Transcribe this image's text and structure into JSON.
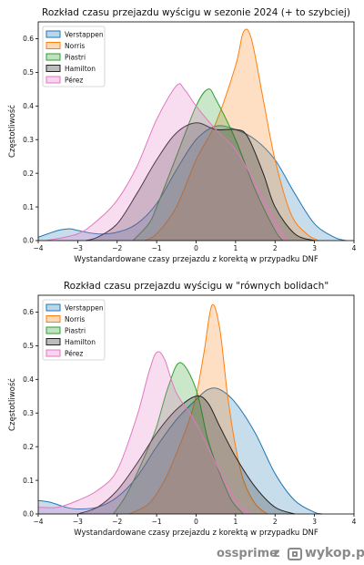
{
  "chart_data": [
    {
      "type": "area",
      "title": "Rozkład czasu przejazdu wyścigu w sezonie 2024 (+ to szybciej)",
      "xlabel": "Wystandardowane czasy przejazdu z korektą w przypadku DNF",
      "ylabel": "Częstotliwość",
      "xlim": [
        -4,
        4
      ],
      "ylim": [
        0,
        0.65
      ],
      "xticks": [
        "−4",
        "−3",
        "−2",
        "−1",
        "0",
        "1",
        "2",
        "3",
        "4"
      ],
      "yticks": [
        "0.0",
        "0.1",
        "0.2",
        "0.3",
        "0.4",
        "0.5",
        "0.6"
      ],
      "legend_position": "top-left",
      "series": [
        {
          "name": "Verstappen",
          "color": "#1f77b4",
          "x": [
            -4.0,
            -3.5,
            -3.2,
            -3.0,
            -2.5,
            -2.0,
            -1.5,
            -1.0,
            -0.5,
            0.0,
            0.5,
            1.0,
            1.5,
            2.0,
            2.5,
            3.0,
            3.5,
            3.8
          ],
          "y": [
            0.01,
            0.03,
            0.035,
            0.03,
            0.02,
            0.025,
            0.05,
            0.11,
            0.21,
            0.3,
            0.34,
            0.33,
            0.3,
            0.24,
            0.14,
            0.05,
            0.01,
            0.0
          ]
        },
        {
          "name": "Norris",
          "color": "#ff7f0e",
          "x": [
            -1.3,
            -1.0,
            -0.5,
            0.0,
            0.5,
            1.0,
            1.2,
            1.4,
            1.7,
            2.0,
            2.4,
            2.8,
            3.1
          ],
          "y": [
            0.0,
            0.02,
            0.1,
            0.24,
            0.35,
            0.52,
            0.62,
            0.6,
            0.42,
            0.24,
            0.08,
            0.02,
            0.0
          ]
        },
        {
          "name": "Piastri",
          "color": "#2ca02c",
          "x": [
            -1.6,
            -1.2,
            -1.0,
            -0.5,
            0.0,
            0.3,
            0.5,
            1.0,
            1.5,
            2.0,
            2.2
          ],
          "y": [
            0.0,
            0.05,
            0.1,
            0.25,
            0.4,
            0.45,
            0.42,
            0.3,
            0.15,
            0.03,
            0.0
          ]
        },
        {
          "name": "Hamilton",
          "color": "#222222",
          "x": [
            -2.8,
            -2.5,
            -2.0,
            -1.5,
            -1.0,
            -0.5,
            0.0,
            0.5,
            1.0,
            1.3,
            1.7,
            2.0,
            2.5,
            3.0
          ],
          "y": [
            0.0,
            0.01,
            0.05,
            0.14,
            0.24,
            0.32,
            0.35,
            0.33,
            0.33,
            0.31,
            0.2,
            0.1,
            0.02,
            0.0
          ]
        },
        {
          "name": "Pérez",
          "color": "#e377c2",
          "x": [
            -3.8,
            -3.0,
            -2.5,
            -2.0,
            -1.5,
            -1.0,
            -0.5,
            -0.3,
            0.0,
            0.5,
            1.0,
            1.5,
            2.0,
            2.3
          ],
          "y": [
            0.0,
            0.02,
            0.06,
            0.12,
            0.22,
            0.36,
            0.46,
            0.45,
            0.4,
            0.33,
            0.27,
            0.17,
            0.06,
            0.0
          ]
        }
      ]
    },
    {
      "type": "area",
      "title": "Rozkład czasu przejazdu wyścigu w \"równych bolidach\"",
      "xlabel": "Wystandardowane czasy przejazdu z korektą w przypadku DNF",
      "ylabel": "Częstotliwość",
      "xlim": [
        -4,
        4
      ],
      "ylim": [
        0,
        0.65
      ],
      "xticks": [
        "−4",
        "−3",
        "−2",
        "−1",
        "0",
        "1",
        "2",
        "3",
        "4"
      ],
      "yticks": [
        "0.0",
        "0.1",
        "0.2",
        "0.3",
        "0.4",
        "0.5",
        "0.6"
      ],
      "legend_position": "top-left",
      "series": [
        {
          "name": "Verstappen",
          "color": "#1f77b4",
          "x": [
            -4.0,
            -3.7,
            -3.3,
            -3.0,
            -2.5,
            -2.0,
            -1.5,
            -1.0,
            -0.5,
            0.0,
            0.3,
            0.6,
            1.0,
            1.5,
            2.0,
            2.5,
            3.0,
            3.2
          ],
          "y": [
            0.04,
            0.035,
            0.02,
            0.015,
            0.02,
            0.05,
            0.11,
            0.2,
            0.28,
            0.34,
            0.37,
            0.37,
            0.33,
            0.24,
            0.12,
            0.04,
            0.005,
            0.0
          ]
        },
        {
          "name": "Norris",
          "color": "#ff7f0e",
          "x": [
            -1.7,
            -1.2,
            -0.8,
            -0.5,
            -0.2,
            0.0,
            0.2,
            0.4,
            0.6,
            0.8,
            1.0,
            1.2,
            1.5,
            1.8
          ],
          "y": [
            0.0,
            0.03,
            0.1,
            0.18,
            0.27,
            0.35,
            0.48,
            0.62,
            0.55,
            0.35,
            0.2,
            0.1,
            0.03,
            0.0
          ]
        },
        {
          "name": "Piastri",
          "color": "#2ca02c",
          "x": [
            -2.1,
            -1.8,
            -1.5,
            -1.2,
            -1.0,
            -0.7,
            -0.4,
            0.0,
            0.3,
            0.6,
            0.9,
            1.2
          ],
          "y": [
            0.0,
            0.05,
            0.12,
            0.2,
            0.26,
            0.38,
            0.45,
            0.37,
            0.22,
            0.12,
            0.04,
            0.0
          ]
        },
        {
          "name": "Hamilton",
          "color": "#222222",
          "x": [
            -3.0,
            -2.5,
            -2.0,
            -1.5,
            -1.0,
            -0.5,
            0.0,
            0.3,
            0.6,
            1.0,
            1.5,
            2.0,
            2.5
          ],
          "y": [
            0.0,
            0.02,
            0.07,
            0.15,
            0.24,
            0.31,
            0.35,
            0.33,
            0.26,
            0.17,
            0.08,
            0.02,
            0.0
          ]
        },
        {
          "name": "Pérez",
          "color": "#e377c2",
          "x": [
            -4.0,
            -3.5,
            -3.0,
            -2.5,
            -2.0,
            -1.5,
            -1.2,
            -1.0,
            -0.8,
            -0.5,
            0.0,
            0.5,
            1.0,
            1.4
          ],
          "y": [
            0.02,
            0.02,
            0.04,
            0.07,
            0.13,
            0.29,
            0.42,
            0.48,
            0.46,
            0.36,
            0.27,
            0.15,
            0.04,
            0.0
          ]
        }
      ]
    }
  ],
  "watermark": {
    "username": "ossprime",
    "separator": "z",
    "site": "wykop.pl"
  }
}
